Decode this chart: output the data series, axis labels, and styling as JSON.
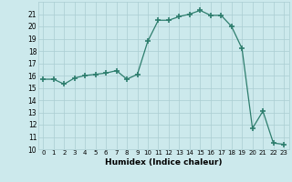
{
  "x": [
    0,
    1,
    2,
    3,
    4,
    5,
    6,
    7,
    8,
    9,
    10,
    11,
    12,
    13,
    14,
    15,
    16,
    17,
    18,
    19,
    20,
    21,
    22,
    23
  ],
  "y": [
    15.7,
    15.7,
    15.3,
    15.8,
    16.0,
    16.1,
    16.2,
    16.4,
    15.7,
    16.1,
    18.8,
    20.5,
    20.5,
    20.8,
    21.0,
    21.3,
    20.9,
    20.9,
    20.0,
    18.2,
    11.7,
    13.1,
    10.5,
    10.4
  ],
  "xlabel": "Humidex (Indice chaleur)",
  "ylim": [
    10,
    22
  ],
  "xlim": [
    -0.5,
    23.5
  ],
  "yticks": [
    10,
    11,
    12,
    13,
    14,
    15,
    16,
    17,
    18,
    19,
    20,
    21
  ],
  "xticks": [
    0,
    1,
    2,
    3,
    4,
    5,
    6,
    7,
    8,
    9,
    10,
    11,
    12,
    13,
    14,
    15,
    16,
    17,
    18,
    19,
    20,
    21,
    22,
    23
  ],
  "line_color": "#2d7d6d",
  "marker": "+",
  "marker_size": 4,
  "bg_color": "#cce9ec",
  "grid_color": "#aacdd2",
  "fig_bg": "#cce9ec"
}
